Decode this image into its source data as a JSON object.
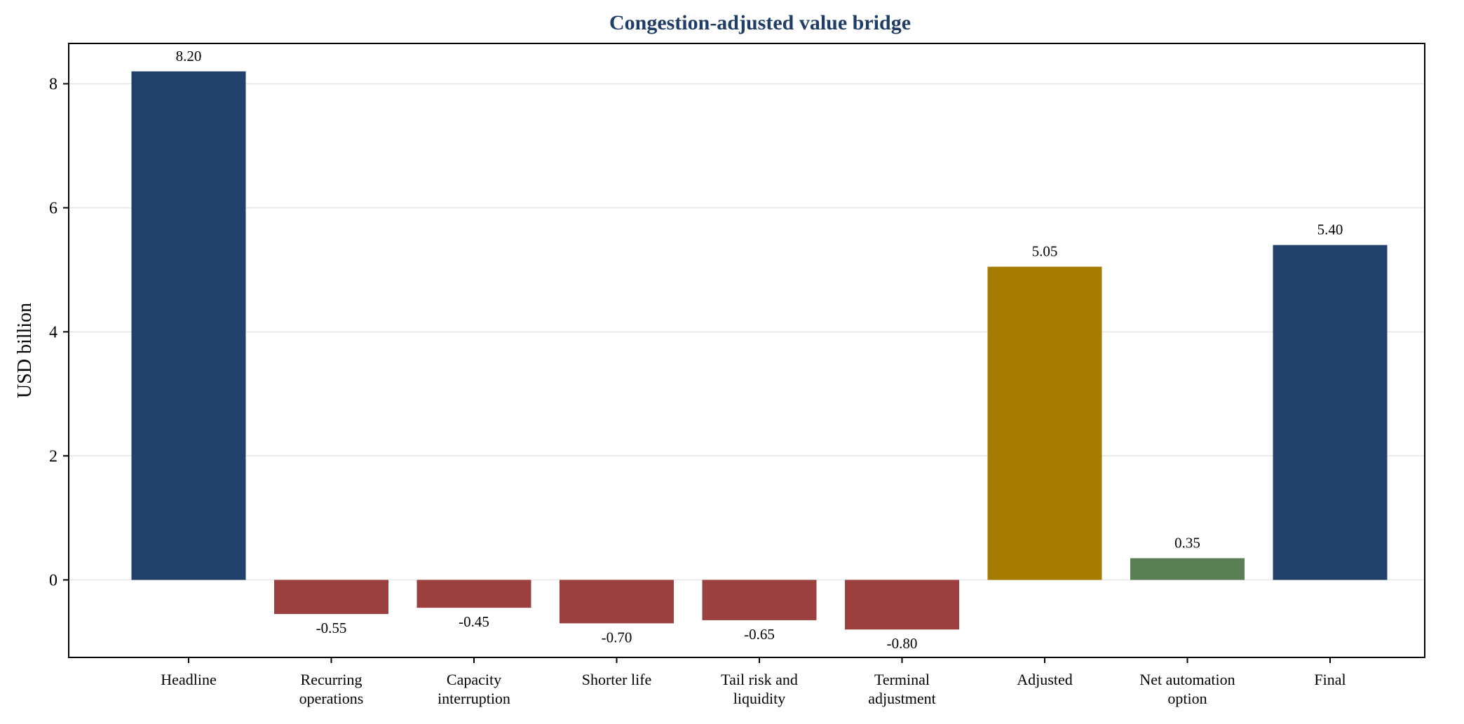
{
  "chart_data": {
    "type": "bar",
    "title": "Congestion-adjusted value bridge",
    "ylabel": "USD billion",
    "xlabel": "",
    "ylim": [
      -1.25,
      8.65
    ],
    "yticks": [
      0,
      2,
      4,
      6,
      8
    ],
    "grid": true,
    "categories": [
      [
        "Headline"
      ],
      [
        "Recurring",
        "operations"
      ],
      [
        "Capacity",
        "interruption"
      ],
      [
        "Shorter life"
      ],
      [
        "Tail risk and",
        "liquidity"
      ],
      [
        "Terminal",
        "adjustment"
      ],
      [
        "Adjusted"
      ],
      [
        "Net automation",
        "option"
      ],
      [
        "Final"
      ]
    ],
    "values": [
      8.2,
      -0.55,
      -0.45,
      -0.7,
      -0.65,
      -0.8,
      5.05,
      0.35,
      5.4
    ],
    "labels": [
      "8.20",
      "-0.55",
      "-0.45",
      "-0.70",
      "-0.65",
      "-0.80",
      "5.05",
      "0.35",
      "5.40"
    ],
    "colors": [
      "#21416a",
      "#9b3f3f",
      "#9b3f3f",
      "#9b3f3f",
      "#9b3f3f",
      "#9b3f3f",
      "#a67c00",
      "#5a7f55",
      "#21416a"
    ]
  }
}
